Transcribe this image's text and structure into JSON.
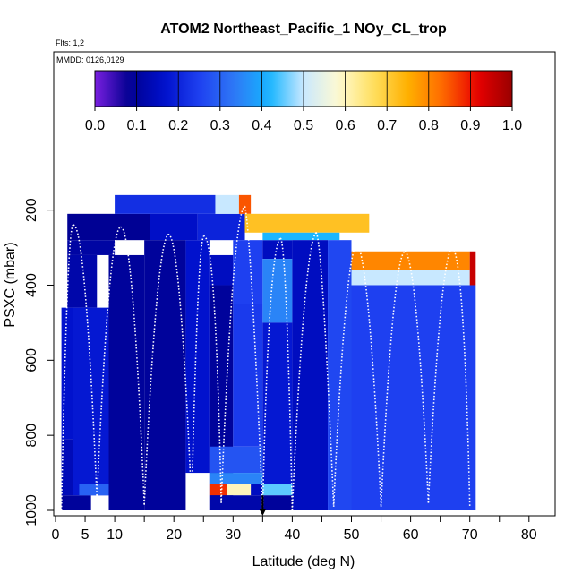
{
  "chart_data": {
    "type": "heatmap",
    "title": "ATOM2 Northeast_Pacific_1 NOy_CL_trop",
    "flights_note": "Flts: 1,2",
    "date_note": "MMDD: 0126,0129",
    "xlabel": "Latitude (deg N)",
    "ylabel": "PSXC (mbar)",
    "xlim": [
      0,
      85
    ],
    "ylim": [
      1000,
      50
    ],
    "y_reversed": true,
    "x_ticks": [
      0,
      5,
      10,
      20,
      30,
      40,
      50,
      60,
      70,
      80
    ],
    "x_minor_ticks": [
      15,
      25,
      35,
      45,
      55,
      65,
      75,
      85
    ],
    "y_ticks": [
      200,
      400,
      600,
      800,
      1000
    ],
    "colorbar": {
      "range": [
        0.0,
        1.0
      ],
      "ticks": [
        "0.0",
        "0.1",
        "0.2",
        "0.3",
        "0.4",
        "0.5",
        "0.6",
        "0.7",
        "0.8",
        "0.9",
        "1.0"
      ],
      "colors": [
        "#7a1fe0",
        "#00008f",
        "#0010cc",
        "#1e40f0",
        "#2f78f5",
        "#14b4ff",
        "#c8e8ff",
        "#fffad2",
        "#ffe060",
        "#ffb000",
        "#ff6a00",
        "#e80000",
        "#990000"
      ]
    },
    "segments": [
      {
        "x0": 1,
        "x1": 6,
        "ptop": 960,
        "pbot": 1000,
        "v": 0.1
      },
      {
        "x0": 1,
        "x1": 3,
        "ptop": 810,
        "pbot": 960,
        "v": 0.14
      },
      {
        "x0": 1,
        "x1": 3,
        "ptop": 460,
        "pbot": 810,
        "v": 0.17
      },
      {
        "x0": 2,
        "x1": 7,
        "ptop": 320,
        "pbot": 460,
        "v": 0.12
      },
      {
        "x0": 2,
        "x1": 16,
        "ptop": 210,
        "pbot": 280,
        "v": 0.09
      },
      {
        "x0": 2,
        "x1": 10,
        "ptop": 280,
        "pbot": 320,
        "v": 0.11
      },
      {
        "x0": 3,
        "x1": 9,
        "ptop": 460,
        "pbot": 960,
        "v": 0.18
      },
      {
        "x0": 4,
        "x1": 9,
        "ptop": 930,
        "pbot": 960,
        "v": 0.3
      },
      {
        "x0": 9,
        "x1": 15,
        "ptop": 320,
        "pbot": 1000,
        "v": 0.1
      },
      {
        "x0": 10,
        "x1": 27,
        "ptop": 160,
        "pbot": 210,
        "v": 0.22
      },
      {
        "x0": 16,
        "x1": 24,
        "ptop": 210,
        "pbot": 280,
        "v": 0.16
      },
      {
        "x0": 15,
        "x1": 22,
        "ptop": 280,
        "pbot": 1000,
        "v": 0.1
      },
      {
        "x0": 22,
        "x1": 26,
        "ptop": 280,
        "pbot": 900,
        "v": 0.17
      },
      {
        "x0": 24,
        "x1": 32,
        "ptop": 210,
        "pbot": 280,
        "v": 0.2
      },
      {
        "x0": 26,
        "x1": 30,
        "ptop": 320,
        "pbot": 400,
        "v": 0.15
      },
      {
        "x0": 26,
        "x1": 30,
        "ptop": 400,
        "pbot": 1000,
        "v": 0.1
      },
      {
        "x0": 27,
        "x1": 31,
        "ptop": 160,
        "pbot": 210,
        "v": 0.5
      },
      {
        "x0": 31,
        "x1": 33,
        "ptop": 160,
        "pbot": 210,
        "v": 0.85
      },
      {
        "x0": 30,
        "x1": 35,
        "ptop": 280,
        "pbot": 450,
        "v": 0.25
      },
      {
        "x0": 30,
        "x1": 35,
        "ptop": 450,
        "pbot": 830,
        "v": 0.24
      },
      {
        "x0": 26,
        "x1": 35,
        "ptop": 830,
        "pbot": 900,
        "v": 0.28
      },
      {
        "x0": 26,
        "x1": 35,
        "ptop": 900,
        "pbot": 930,
        "v": 0.35
      },
      {
        "x0": 26,
        "x1": 29,
        "ptop": 930,
        "pbot": 960,
        "v": 0.88
      },
      {
        "x0": 29,
        "x1": 33,
        "ptop": 930,
        "pbot": 960,
        "v": 0.6
      },
      {
        "x0": 33,
        "x1": 35,
        "ptop": 930,
        "pbot": 960,
        "v": 0.15
      },
      {
        "x0": 26,
        "x1": 35,
        "ptop": 960,
        "pbot": 1000,
        "v": 0.12
      },
      {
        "x0": 35,
        "x1": 40,
        "ptop": 280,
        "pbot": 330,
        "v": 0.15
      },
      {
        "x0": 35,
        "x1": 40,
        "ptop": 330,
        "pbot": 500,
        "v": 0.35
      },
      {
        "x0": 35,
        "x1": 40,
        "ptop": 500,
        "pbot": 930,
        "v": 0.18
      },
      {
        "x0": 35,
        "x1": 40,
        "ptop": 930,
        "pbot": 960,
        "v": 0.45
      },
      {
        "x0": 35,
        "x1": 40,
        "ptop": 960,
        "pbot": 1000,
        "v": 0.1
      },
      {
        "x0": 32,
        "x1": 53,
        "ptop": 210,
        "pbot": 260,
        "v": 0.72
      },
      {
        "x0": 35,
        "x1": 48,
        "ptop": 260,
        "pbot": 280,
        "v": 0.42
      },
      {
        "x0": 40,
        "x1": 46,
        "ptop": 280,
        "pbot": 1000,
        "v": 0.15
      },
      {
        "x0": 46,
        "x1": 50,
        "ptop": 280,
        "pbot": 1000,
        "v": 0.26
      },
      {
        "x0": 50,
        "x1": 70,
        "ptop": 310,
        "pbot": 360,
        "v": 0.8
      },
      {
        "x0": 50,
        "x1": 70,
        "ptop": 360,
        "pbot": 400,
        "v": 0.5
      },
      {
        "x0": 50,
        "x1": 71,
        "ptop": 400,
        "pbot": 1000,
        "v": 0.25
      },
      {
        "x0": 70,
        "x1": 71,
        "ptop": 310,
        "pbot": 400,
        "v": 0.95
      }
    ],
    "profiles": [
      {
        "lat": [
          1,
          2,
          3
        ],
        "p": [
          1000,
          230,
          240
        ]
      },
      {
        "lat": [
          3,
          5,
          7
        ],
        "p": [
          240,
          230,
          970
        ]
      },
      {
        "lat": [
          7,
          9,
          11
        ],
        "p": [
          970,
          250,
          245
        ]
      },
      {
        "lat": [
          11,
          13,
          15
        ],
        "p": [
          245,
          240,
          985
        ]
      },
      {
        "lat": [
          15,
          17,
          19
        ],
        "p": [
          985,
          300,
          265
        ]
      },
      {
        "lat": [
          19,
          21,
          23
        ],
        "p": [
          265,
          250,
          985
        ]
      },
      {
        "lat": [
          23,
          24,
          25
        ],
        "p": [
          985,
          300,
          270
        ]
      },
      {
        "lat": [
          25,
          27,
          28
        ],
        "p": [
          270,
          250,
          980
        ]
      },
      {
        "lat": [
          28,
          30,
          32
        ],
        "p": [
          980,
          200,
          190
        ]
      },
      {
        "lat": [
          32,
          33,
          35
        ],
        "p": [
          190,
          260,
          1000
        ]
      },
      {
        "lat": [
          35,
          36,
          38
        ],
        "p": [
          1000,
          300,
          275
        ]
      },
      {
        "lat": [
          38,
          39,
          40
        ],
        "p": [
          275,
          280,
          1000
        ]
      },
      {
        "lat": [
          40,
          42,
          44
        ],
        "p": [
          1000,
          300,
          260
        ]
      },
      {
        "lat": [
          44,
          45,
          47
        ],
        "p": [
          260,
          260,
          990
        ]
      },
      {
        "lat": [
          47,
          49,
          51
        ],
        "p": [
          990,
          300,
          290
        ]
      },
      {
        "lat": [
          51,
          53,
          55
        ],
        "p": [
          290,
          340,
          990
        ]
      },
      {
        "lat": [
          55,
          57,
          59
        ],
        "p": [
          990,
          330,
          310
        ]
      },
      {
        "lat": [
          59,
          61,
          63
        ],
        "p": [
          310,
          320,
          980
        ]
      },
      {
        "lat": [
          63,
          65,
          67
        ],
        "p": [
          980,
          330,
          300
        ]
      },
      {
        "lat": [
          67,
          69,
          70
        ],
        "p": [
          300,
          310,
          990
        ]
      }
    ],
    "arrow_lat": 35
  }
}
